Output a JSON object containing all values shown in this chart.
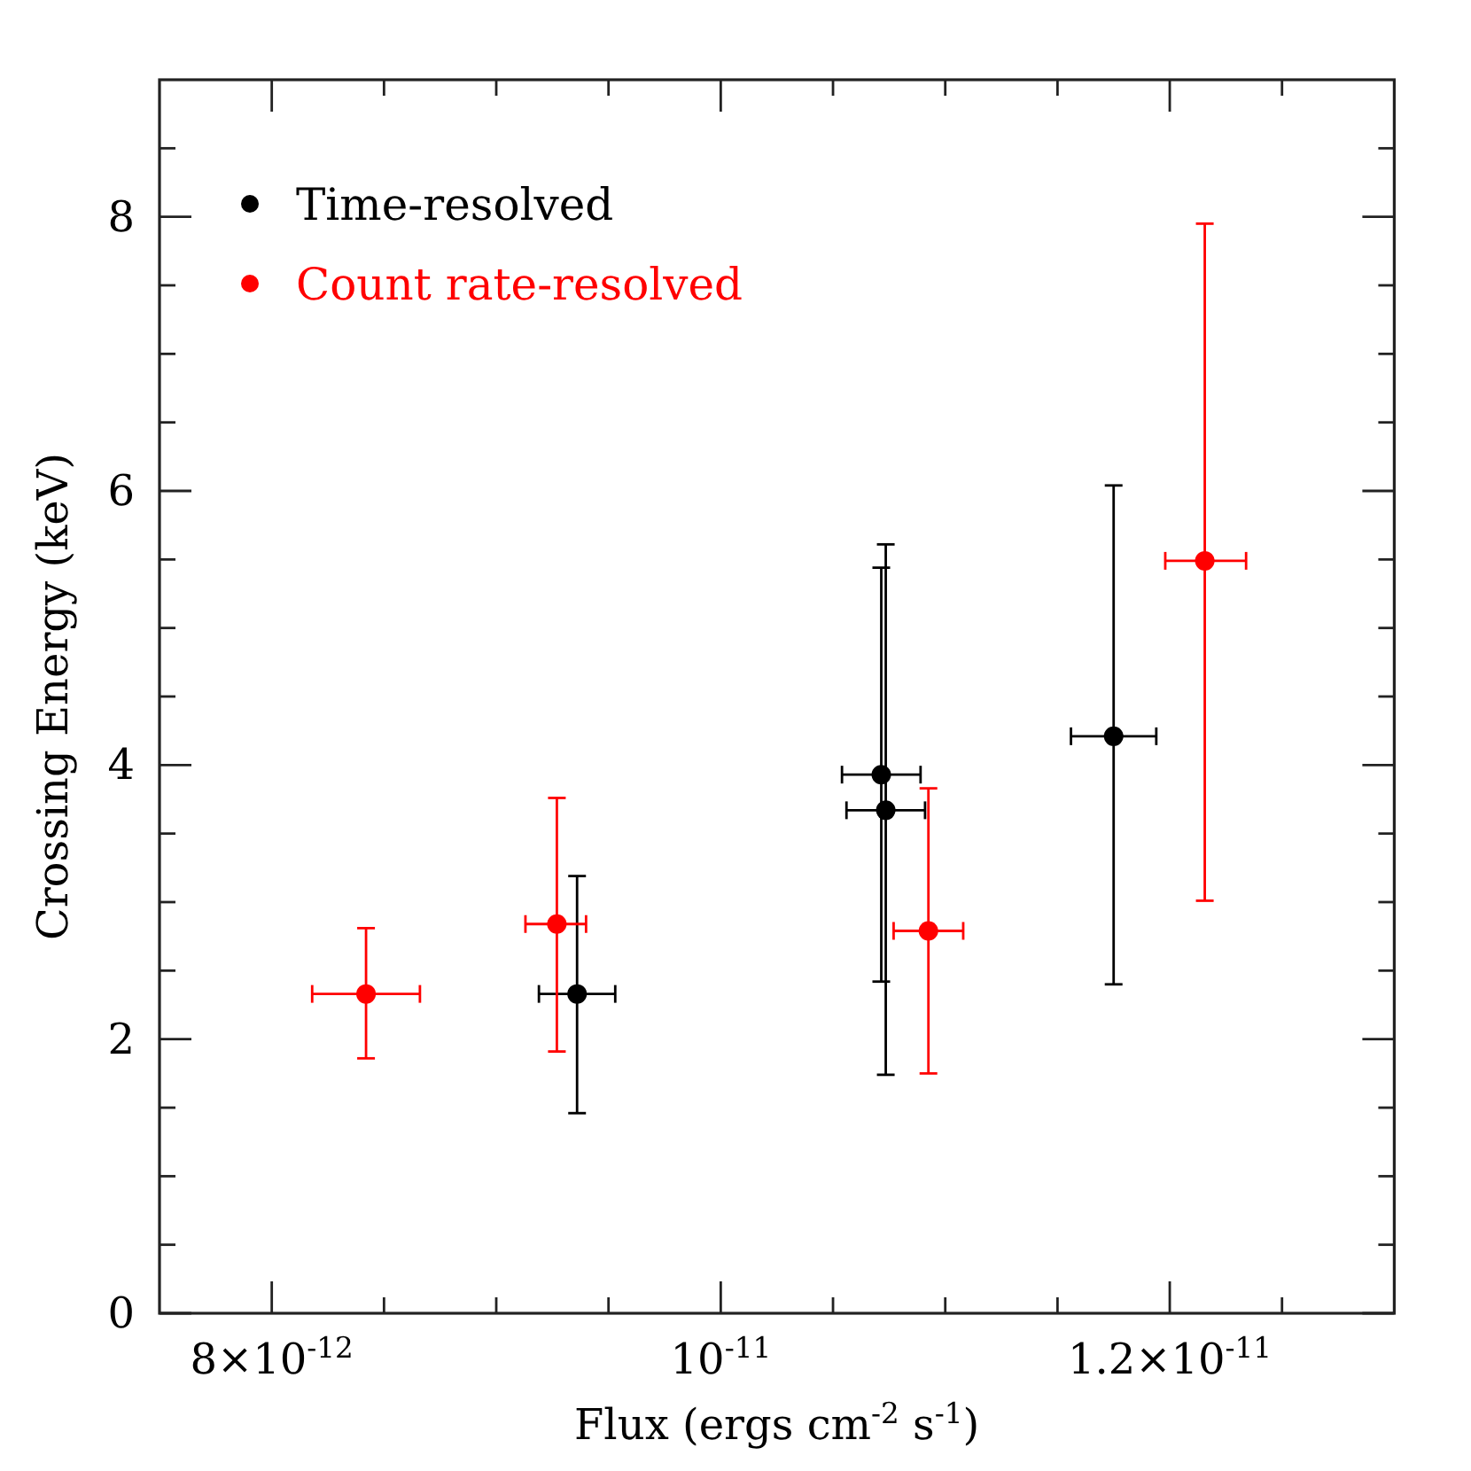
{
  "chart_data": {
    "type": "scatter",
    "xlabel": "Flux (ergs cm$^{-2}$ s$^{-1}$)",
    "ylabel": "Crossing Energy (keV)",
    "xlim": [
      7.5e-12,
      1.3e-11
    ],
    "ylim": [
      0,
      9
    ],
    "xticks": [
      {
        "value": 8e-12,
        "label": "8×10$^{-12}$"
      },
      {
        "value": 8.5e-12,
        "label": null
      },
      {
        "value": 9e-12,
        "label": null
      },
      {
        "value": 9.5e-12,
        "label": null
      },
      {
        "value": 1e-11,
        "label": "10$^{-11}$"
      },
      {
        "value": 1.05e-11,
        "label": null
      },
      {
        "value": 1.1e-11,
        "label": null
      },
      {
        "value": 1.15e-11,
        "label": null
      },
      {
        "value": 1.2e-11,
        "label": "1.2×10$^{-11}$"
      },
      {
        "value": 1.25e-11,
        "label": null
      }
    ],
    "yticks": [
      0,
      {
        "value": 0.5,
        "label": null
      },
      {
        "value": 1,
        "label": null
      },
      {
        "value": 1.5,
        "label": null
      },
      2,
      {
        "value": 2.5,
        "label": null
      },
      {
        "value": 3,
        "label": null
      },
      {
        "value": 3.5,
        "label": null
      },
      4,
      {
        "value": 4.5,
        "label": null
      },
      {
        "value": 5,
        "label": null
      },
      {
        "value": 5.5,
        "label": null
      },
      6,
      {
        "value": 6.5,
        "label": null
      },
      {
        "value": 7,
        "label": null
      },
      {
        "value": 7.5,
        "label": null
      },
      8,
      {
        "value": 8.5,
        "label": null
      }
    ],
    "marker": "circle",
    "legend": "top left",
    "series": [
      {
        "name": "Time-resolved",
        "color": "#000000",
        "x": [
          9.36e-12,
          1.0715e-11,
          1.0735e-11,
          1.175e-11
        ],
        "values": [
          2.33,
          3.93,
          3.67,
          4.21
        ],
        "errors": [
          [
            1.46,
            3.19
          ],
          [
            2.42,
            5.44
          ],
          [
            1.74,
            5.61
          ],
          [
            2.4,
            6.04
          ]
        ],
        "xerrors": [
          [
            9.19e-12,
            9.53e-12
          ],
          [
            1.054e-11,
            1.089e-11
          ],
          [
            1.056e-11,
            1.091e-11
          ],
          [
            1.156e-11,
            1.194e-11
          ]
        ]
      },
      {
        "name": "Count rate-resolved",
        "color": "#ff0000",
        "x": [
          8.42e-12,
          9.27e-12,
          1.0925e-11,
          1.2156e-11
        ],
        "values": [
          2.33,
          2.84,
          2.79,
          5.49
        ],
        "errors": [
          [
            1.86,
            2.81
          ],
          [
            1.91,
            3.76
          ],
          [
            1.75,
            3.83
          ],
          [
            3.01,
            7.95
          ]
        ],
        "xerrors": [
          [
            8.18e-12,
            8.66e-12
          ],
          [
            9.13e-12,
            9.4e-12
          ],
          [
            1.077e-11,
            1.108e-11
          ],
          [
            1.198e-11,
            1.234e-11
          ]
        ]
      }
    ]
  }
}
